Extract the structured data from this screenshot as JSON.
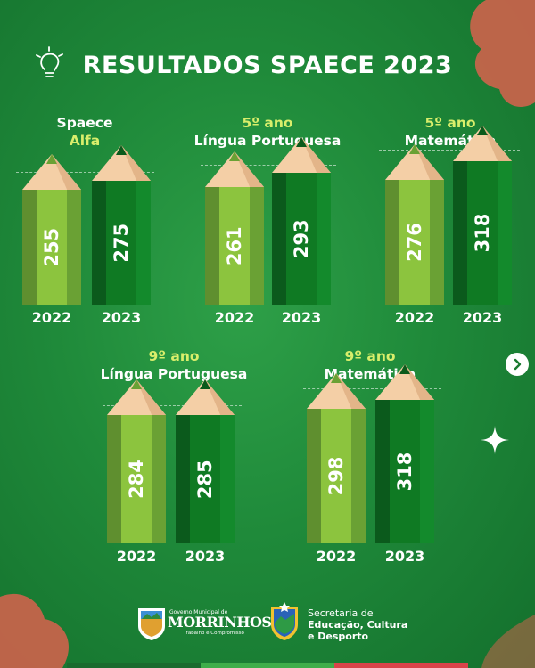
{
  "title": "RESULTADOS SPAECE 2023",
  "colors": {
    "previous": "#8cc43e",
    "current": "#0f7a23",
    "highlight": "#d9ee6b"
  },
  "chart_data": [
    {
      "type": "bar",
      "title_line1": "Spaece",
      "title_line2": "Alfa",
      "categories": [
        "2022",
        "2023"
      ],
      "values": [
        255,
        275
      ]
    },
    {
      "type": "bar",
      "title_line1": "5º ano",
      "title_line2": "Língua Portuguesa",
      "categories": [
        "2022",
        "2023"
      ],
      "values": [
        261,
        293
      ]
    },
    {
      "type": "bar",
      "title_line1": "5º ano",
      "title_line2": "Matemática",
      "categories": [
        "2022",
        "2023"
      ],
      "values": [
        276,
        318
      ]
    },
    {
      "type": "bar",
      "title_line1": "9º ano",
      "title_line2": "Língua Portuguesa",
      "categories": [
        "2022",
        "2023"
      ],
      "values": [
        284,
        285
      ]
    },
    {
      "type": "bar",
      "title_line1": "9º ano",
      "title_line2": "Matemática",
      "categories": [
        "2022",
        "2023"
      ],
      "values": [
        298,
        318
      ]
    }
  ],
  "footer": {
    "gov_small": "Governo Municipal de",
    "gov_big": "MORRINHOS",
    "gov_tag": "Trabalho e Compromisso",
    "sec_line1": "Secretaria de",
    "sec_line2": "Educação, Cultura",
    "sec_line3": "e Desporto"
  },
  "icons": {
    "bulb": "lightbulb-icon",
    "next": "chevron-right-icon",
    "star": "sparkle-icon"
  }
}
